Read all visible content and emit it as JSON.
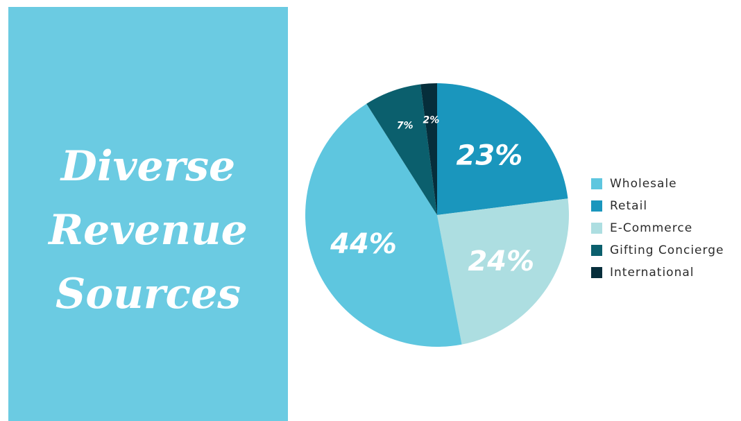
{
  "title": {
    "line1": "Diverse",
    "line2": "Revenue",
    "line3": "Sources"
  },
  "colors": {
    "panel": "#6bcbe2",
    "title_text": "#ffffff",
    "slice_label": "#ffffff",
    "legend_text": "#2b2b2b"
  },
  "chart_data": {
    "type": "pie",
    "title": "Diverse Revenue Sources",
    "start_angle_deg": 0,
    "direction": "clockwise",
    "legend_position": "right",
    "slices": [
      {
        "label": "Retail",
        "value": 23,
        "display": "23%",
        "color": "#1a96bd"
      },
      {
        "label": "E-Commerce",
        "value": 24,
        "display": "24%",
        "color": "#addee1"
      },
      {
        "label": "Wholesale",
        "value": 44,
        "display": "44%",
        "color": "#5ec6df"
      },
      {
        "label": "Gifting Concierge",
        "value": 7,
        "display": "7%",
        "color": "#0b5f6d"
      },
      {
        "label": "International",
        "value": 2,
        "display": "2%",
        "color": "#062e3b"
      }
    ],
    "legend": [
      {
        "label": "Wholesale",
        "color": "#5ec6df"
      },
      {
        "label": "Retail",
        "color": "#1a96bd"
      },
      {
        "label": "E-Commerce",
        "color": "#addee1"
      },
      {
        "label": "Gifting Concierge",
        "color": "#0b5f6d"
      },
      {
        "label": "International",
        "color": "#062e3b"
      }
    ]
  }
}
